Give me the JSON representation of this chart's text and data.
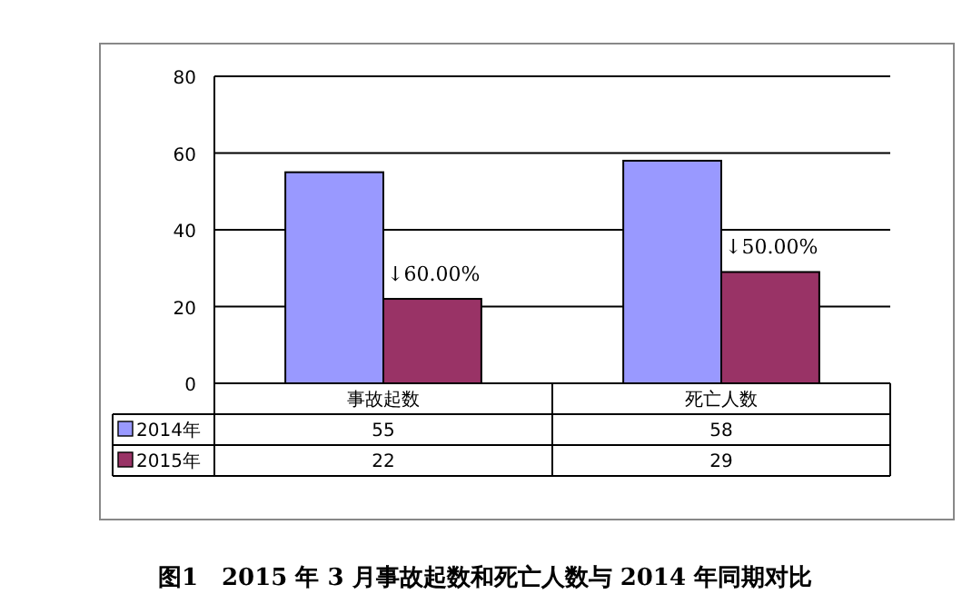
{
  "chart_data": {
    "type": "bar",
    "title": "图1　2015 年 3 月事故起数和死亡人数与 2014 年同期对比",
    "categories": [
      "事故起数",
      "死亡人数"
    ],
    "series": [
      {
        "name": "2014年",
        "color": "#9999ff",
        "values": [
          55,
          58
        ]
      },
      {
        "name": "2015年",
        "color": "#993366",
        "values": [
          22,
          29
        ]
      }
    ],
    "ylim": [
      0,
      80
    ],
    "yticks": [
      0,
      20,
      40,
      60,
      80
    ],
    "grid": "y",
    "legend": "bottom",
    "data_labels": true,
    "annotations": [
      {
        "text": "↓60.00%",
        "x": "事故起数",
        "y": 22
      },
      {
        "text": "↓50.00%",
        "x": "死亡人数",
        "y": 29
      }
    ]
  }
}
